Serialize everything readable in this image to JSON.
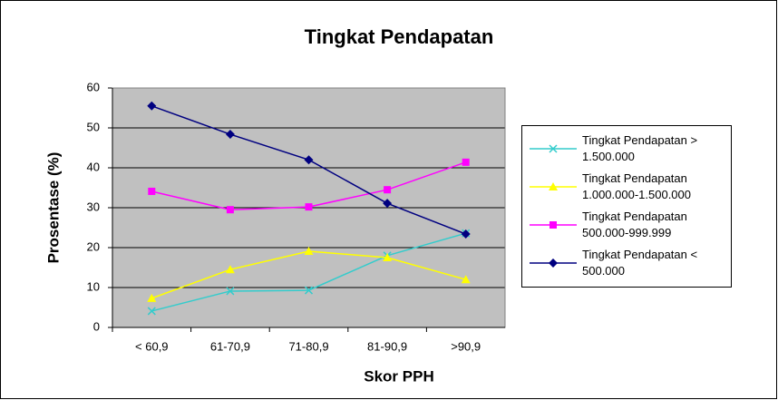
{
  "chart_data": {
    "type": "line",
    "title": "Tingkat Pendapatan",
    "xlabel": "Skor PPH",
    "ylabel": "Prosentase (%)",
    "categories": [
      "< 60,9",
      "61-70,9",
      "71-80,9",
      "81-90,9",
      ">90,9"
    ],
    "ylim": [
      0,
      60
    ],
    "yticks": [
      0,
      10,
      20,
      30,
      40,
      50,
      60
    ],
    "grid": true,
    "series": [
      {
        "name": "Tingkat Pendapatan > 1.500.000",
        "color": "#33cccc",
        "marker": "x",
        "values": [
          4.1,
          9.1,
          9.3,
          18,
          23.6
        ]
      },
      {
        "name": "Tingkat Pendapatan 1.000.000-1.500.000",
        "color": "#ffff00",
        "marker": "triangle",
        "values": [
          7.3,
          14.5,
          19.1,
          17.5,
          12
        ]
      },
      {
        "name": "Tingkat Pendapatan 500.000-999.999",
        "color": "#ff00ff",
        "marker": "square",
        "values": [
          34.1,
          29.5,
          30.2,
          34.5,
          41.4
        ]
      },
      {
        "name": "Tingkat Pendapatan < 500.000",
        "color": "#000080",
        "marker": "diamond",
        "values": [
          55.5,
          48.4,
          42,
          31.1,
          23.4
        ]
      }
    ]
  }
}
